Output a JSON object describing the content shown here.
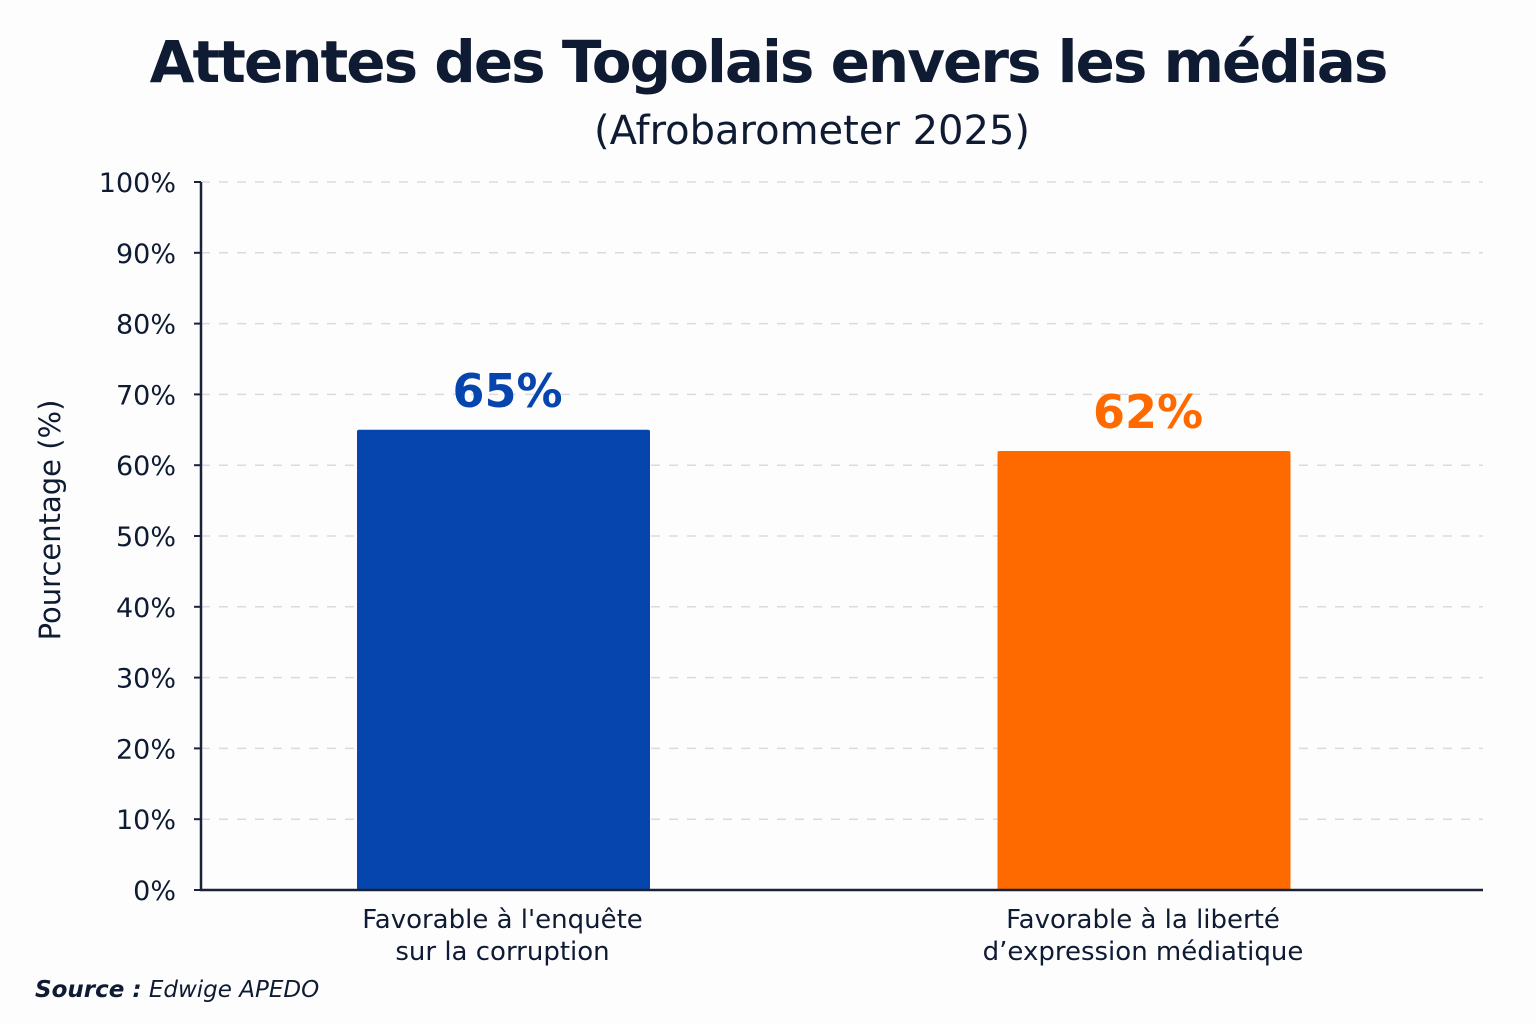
{
  "chart_data": {
    "type": "bar",
    "title": "Attentes des Togolais envers les médias",
    "subtitle": "(Afrobarometer 2025)",
    "xlabel": "",
    "ylabel": "Pourcentage (%)",
    "ylim": [
      0,
      100
    ],
    "yticks": [
      0,
      10,
      20,
      30,
      40,
      50,
      60,
      70,
      80,
      90,
      100
    ],
    "ytick_labels": [
      "0%",
      "10%",
      "20%",
      "30%",
      "40%",
      "50%",
      "60%",
      "70%",
      "80%",
      "90%",
      "100%"
    ],
    "grid": true,
    "grid_style": "dashed-horizontal",
    "categories": [
      [
        "Favorable à l'enquête",
        "sur la corruption"
      ],
      [
        "Favorable à la liberté",
        "d’expression médiatique"
      ]
    ],
    "values": [
      65,
      62
    ],
    "data_labels": [
      "65%",
      "62%"
    ],
    "colors": [
      "#0645ad",
      "#ff6a00"
    ],
    "legend": "none"
  },
  "source": {
    "label": "Source :",
    "text": "Edwige APEDO"
  },
  "colors": {
    "text": "#0f1b33",
    "grid": "#d9dbe0",
    "axis": "#1a2238"
  }
}
